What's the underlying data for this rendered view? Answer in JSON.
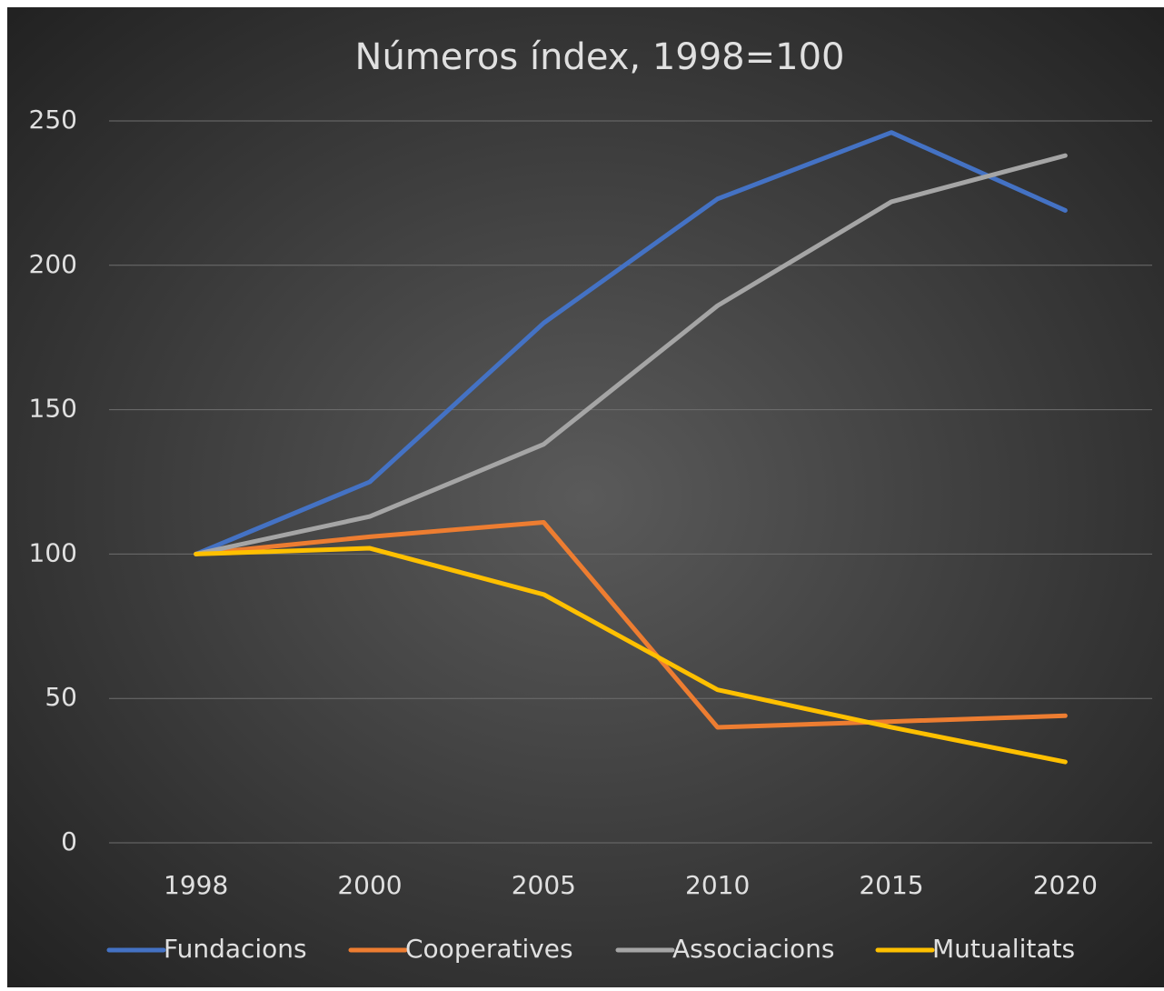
{
  "chart_data": {
    "type": "line",
    "title": "Números índex, 1998=100",
    "categories": [
      "1998",
      "2000",
      "2005",
      "2010",
      "2015",
      "2020"
    ],
    "series": [
      {
        "name": "Fundacions",
        "color": "#4472c4",
        "values": [
          100,
          125,
          180,
          223,
          246,
          219
        ]
      },
      {
        "name": "Cooperatives",
        "color": "#ed7d31",
        "values": [
          100,
          106,
          111,
          40,
          42,
          44
        ]
      },
      {
        "name": "Associacions",
        "color": "#a5a5a5",
        "values": [
          100,
          113,
          138,
          186,
          222,
          238
        ]
      },
      {
        "name": "Mutualitats",
        "color": "#ffc000",
        "values": [
          100,
          102,
          86,
          53,
          40,
          28
        ]
      }
    ],
    "ylim": [
      0,
      250
    ],
    "yticks": [
      0,
      50,
      100,
      150,
      200,
      250
    ],
    "grid": true,
    "legend": "bottom"
  }
}
